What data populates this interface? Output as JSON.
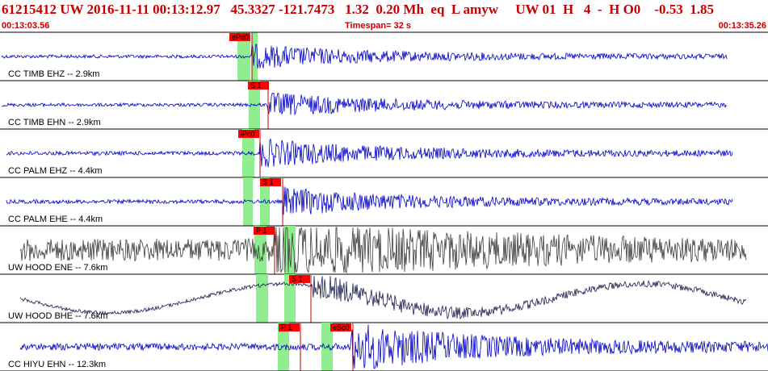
{
  "header": {
    "summary": "61215412 UW 2016-11-11 00:13:12.97   45.3327 -121.7473   1.32  0.20 Mh  eq  L amyw     UW 01  H   4  -  H O0    -0.53  1.85",
    "start_time": "00:13:03.56",
    "timespan": "Timespan=  32 s",
    "end_time": "00:13:35.26"
  },
  "colors": {
    "header_text": "#c40000",
    "velocity_trace": "#0000c8",
    "accel_trace": "#3c3c3c",
    "uncertainty_band": "#90ee90",
    "pick_flag": "#ff0000"
  },
  "traces": [
    {
      "label": "CC TIMB EHZ -- 2.9km",
      "color": "#0000c8",
      "amp": 6,
      "onset": 312,
      "end": 900,
      "bands": [
        [
          294,
          310
        ],
        [
          312,
          319
        ]
      ],
      "picks": [
        {
          "text": "ePd0",
          "x": 284,
          "line": 312
        }
      ]
    },
    {
      "label": "CC TIMB EHN -- 2.9km",
      "color": "#0000c8",
      "amp": 6,
      "onset": 332,
      "end": 900,
      "bands": [
        [
          308,
          322
        ]
      ],
      "picks": [
        {
          "text": "S 1",
          "x": 307,
          "line": 332
        }
      ]
    },
    {
      "label": "CC PALM EHZ -- 4.4km",
      "color": "#0000c8",
      "amp": 7,
      "onset": 322,
      "end": 907,
      "bands": [
        [
          300,
          315
        ]
      ],
      "picks": [
        {
          "text": "iPc0",
          "x": 295,
          "line": 322
        }
      ]
    },
    {
      "label": "CC PALM EHE -- 4.4km",
      "color": "#0000c8",
      "amp": 7,
      "onset": 350,
      "end": 907,
      "bands": [
        [
          301,
          313
        ],
        [
          322,
          334
        ]
      ],
      "picks": [
        {
          "text": "S 1",
          "x": 322,
          "line": 350
        }
      ]
    },
    {
      "label": "UW HOOD ENE -- 7.6km",
      "color": "#3c3c3c",
      "amp": 14,
      "onset": 340,
      "end": 924,
      "bands": [
        [
          315,
          330
        ],
        [
          352,
          366
        ]
      ],
      "picks": [
        {
          "text": "P 1",
          "x": 314,
          "line": 340
        }
      ]
    },
    {
      "label": "UW HOOD BHE -- 7.6km",
      "color": "#1e1e50",
      "amp": 16,
      "onset": 385,
      "end": 924,
      "bands": [
        [
          317,
          332
        ],
        [
          352,
          366
        ]
      ],
      "picks": [
        {
          "text": "S 1",
          "x": 358,
          "line": 385
        }
      ]
    },
    {
      "label": "CC HIYU EHN -- 12.3km",
      "color": "#0000c8",
      "amp": 12,
      "onset": 435,
      "end": 951,
      "bands": [
        [
          344,
          358
        ],
        [
          398,
          412
        ]
      ],
      "picks": [
        {
          "text": "P 1",
          "x": 345,
          "line": 372
        },
        {
          "text": "eSc0",
          "x": 409,
          "line": 437
        }
      ]
    }
  ]
}
